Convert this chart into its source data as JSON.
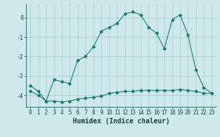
{
  "xlabel": "Humidex (Indice chaleur)",
  "bg_color": "#cce8e8",
  "line_color": "#1a7a6e",
  "grid_color": "#add0d0",
  "x_line1": [
    0,
    1,
    2,
    3,
    4,
    5,
    6,
    7,
    8,
    9,
    10,
    11,
    12,
    13,
    14,
    15,
    16,
    17,
    18,
    19,
    20,
    21,
    22,
    23
  ],
  "y_line1": [
    -3.5,
    -3.8,
    -4.3,
    -3.2,
    -3.3,
    -3.4,
    -2.2,
    -2.0,
    -1.5,
    -0.7,
    -0.5,
    -0.3,
    0.2,
    0.3,
    0.15,
    -0.5,
    -0.8,
    -1.6,
    -0.1,
    0.15,
    -0.9,
    -2.7,
    -3.6,
    -3.9
  ],
  "x_line2": [
    0,
    1,
    2,
    3,
    4,
    5,
    6,
    7,
    8,
    9,
    10,
    11,
    12,
    13,
    14,
    15,
    16,
    17,
    18,
    19,
    20,
    21,
    22,
    23
  ],
  "y_line2": [
    -3.8,
    -4.0,
    -4.3,
    -4.3,
    -4.35,
    -4.3,
    -4.2,
    -4.15,
    -4.1,
    -4.05,
    -3.9,
    -3.85,
    -3.8,
    -3.8,
    -3.75,
    -3.75,
    -3.75,
    -3.75,
    -3.75,
    -3.7,
    -3.75,
    -3.8,
    -3.9,
    -3.9
  ],
  "ylim": [
    -4.6,
    0.7
  ],
  "xlim": [
    -0.5,
    23.5
  ],
  "yticks": [
    0,
    -1,
    -2,
    -3,
    -4
  ],
  "xticks": [
    0,
    1,
    2,
    3,
    4,
    5,
    6,
    7,
    8,
    9,
    10,
    11,
    12,
    13,
    14,
    15,
    16,
    17,
    18,
    19,
    20,
    21,
    22,
    23
  ],
  "tick_fontsize": 5.5,
  "xlabel_fontsize": 7.0
}
